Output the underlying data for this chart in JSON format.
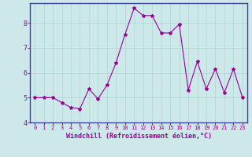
{
  "x": [
    0,
    1,
    2,
    3,
    4,
    5,
    6,
    7,
    8,
    9,
    10,
    11,
    12,
    13,
    14,
    15,
    16,
    17,
    18,
    19,
    20,
    21,
    22,
    23
  ],
  "y": [
    5.0,
    5.0,
    5.0,
    4.8,
    4.6,
    4.55,
    5.35,
    4.95,
    5.5,
    6.4,
    7.55,
    8.6,
    8.3,
    8.3,
    7.6,
    7.6,
    7.95,
    5.3,
    6.45,
    5.35,
    6.15,
    5.2,
    6.15,
    5.0
  ],
  "line_color": "#990099",
  "marker": "*",
  "marker_size": 3,
  "background_color": "#cce8e8",
  "grid_color": "#aad4d4",
  "xlabel": "Windchill (Refroidissement éolien,°C)",
  "ylim": [
    4.0,
    8.8
  ],
  "xlim": [
    -0.5,
    23.5
  ],
  "yticks": [
    4,
    5,
    6,
    7,
    8
  ],
  "xticks": [
    0,
    1,
    2,
    3,
    4,
    5,
    6,
    7,
    8,
    9,
    10,
    11,
    12,
    13,
    14,
    15,
    16,
    17,
    18,
    19,
    20,
    21,
    22,
    23
  ],
  "tick_color": "#990099",
  "label_color": "#990099",
  "spine_color": "#444488",
  "xlabel_fontsize": 6.0,
  "tick_fontsize_x": 5.0,
  "tick_fontsize_y": 6.0
}
